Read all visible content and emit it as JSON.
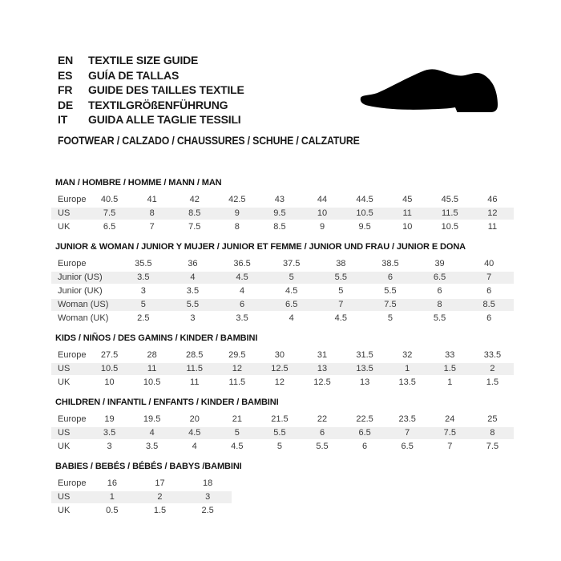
{
  "header": {
    "languages": [
      {
        "code": "EN",
        "label": "TEXTILE SIZE GUIDE"
      },
      {
        "code": "ES",
        "label": "GUÍA DE TALLAS"
      },
      {
        "code": "FR",
        "label": "GUIDE DES TAILLES TEXTILE"
      },
      {
        "code": "DE",
        "label": "TEXTILGRÖßENFÜHRUNG"
      },
      {
        "code": "IT",
        "label": "GUIDA ALLE TAGLIE TESSILI"
      }
    ],
    "category_line": "FOOTWEAR / CALZADO / CHAUSSURES / SCHUHE / CALZATURE",
    "shoe_icon": "dress-shoe-silhouette",
    "shoe_icon_color": "#000000"
  },
  "colors": {
    "header_row_bg": "#c6c6c6",
    "alt_row_bg": "#efefef",
    "table_text": "#3a3a3a"
  },
  "tables": [
    {
      "title": "MAN / HOMBRE / HOMME / MANN / MAN",
      "rows": [
        {
          "label": "Europe",
          "values": [
            "40.5",
            "41",
            "42",
            "42.5",
            "43",
            "44",
            "44.5",
            "45",
            "45.5",
            "46"
          ]
        },
        {
          "label": "US",
          "values": [
            "7.5",
            "8",
            "8.5",
            "9",
            "9.5",
            "10",
            "10.5",
            "11",
            "11.5",
            "12"
          ]
        },
        {
          "label": "UK",
          "values": [
            "6.5",
            "7",
            "7.5",
            "8",
            "8.5",
            "9",
            "9.5",
            "10",
            "10.5",
            "11"
          ]
        }
      ]
    },
    {
      "title": "JUNIOR & WOMAN / JUNIOR Y MUJER / JUNIOR ET FEMME / JUNIOR UND FRAU / JUNIOR E DONA",
      "rows": [
        {
          "label": "Europe",
          "values": [
            "35.5",
            "36",
            "36.5",
            "37.5",
            "38",
            "38.5",
            "39",
            "40"
          ]
        },
        {
          "label": "Junior (US)",
          "values": [
            "3.5",
            "4",
            "4.5",
            "5",
            "5.5",
            "6",
            "6.5",
            "7"
          ]
        },
        {
          "label": "Junior (UK)",
          "values": [
            "3",
            "3.5",
            "4",
            "4.5",
            "5",
            "5.5",
            "6",
            "6"
          ]
        },
        {
          "label": "Woman (US)",
          "values": [
            "5",
            "5.5",
            "6",
            "6.5",
            "7",
            "7.5",
            "8",
            "8.5"
          ]
        },
        {
          "label": "Woman (UK)",
          "values": [
            "2.5",
            "3",
            "3.5",
            "4",
            "4.5",
            "5",
            "5.5",
            "6"
          ]
        }
      ]
    },
    {
      "title": "KIDS / NIÑOS / DES GAMINS / KINDER / BAMBINI",
      "rows": [
        {
          "label": "Europe",
          "values": [
            "27.5",
            "28",
            "28.5",
            "29.5",
            "30",
            "31",
            "31.5",
            "32",
            "33",
            "33.5"
          ]
        },
        {
          "label": "US",
          "values": [
            "10.5",
            "11",
            "11.5",
            "12",
            "12.5",
            "13",
            "13.5",
            "1",
            "1.5",
            "2"
          ]
        },
        {
          "label": "UK",
          "values": [
            "10",
            "10.5",
            "11",
            "11.5",
            "12",
            "12.5",
            "13",
            "13.5",
            "1",
            "1.5"
          ]
        }
      ]
    },
    {
      "title": "CHILDREN / INFANTIL / ENFANTS / KINDER / BAMBINI",
      "rows": [
        {
          "label": "Europe",
          "values": [
            "19",
            "19.5",
            "20",
            "21",
            "21.5",
            "22",
            "22.5",
            "23.5",
            "24",
            "25"
          ]
        },
        {
          "label": "US",
          "values": [
            "3.5",
            "4",
            "4.5",
            "5",
            "5.5",
            "6",
            "6.5",
            "7",
            "7.5",
            "8"
          ]
        },
        {
          "label": "UK",
          "values": [
            "3",
            "3.5",
            "4",
            "4.5",
            "5",
            "5.5",
            "6",
            "6.5",
            "7",
            "7.5"
          ]
        }
      ]
    },
    {
      "title": "BABIES  / BEBÉS / BÉBÉS / BABYS /BAMBINI",
      "narrow": true,
      "rows": [
        {
          "label": "Europe",
          "values": [
            "16",
            "17",
            "18"
          ]
        },
        {
          "label": "US",
          "values": [
            "1",
            "2",
            "3"
          ]
        },
        {
          "label": "UK",
          "values": [
            "0.5",
            "1.5",
            "2.5"
          ]
        }
      ]
    }
  ]
}
